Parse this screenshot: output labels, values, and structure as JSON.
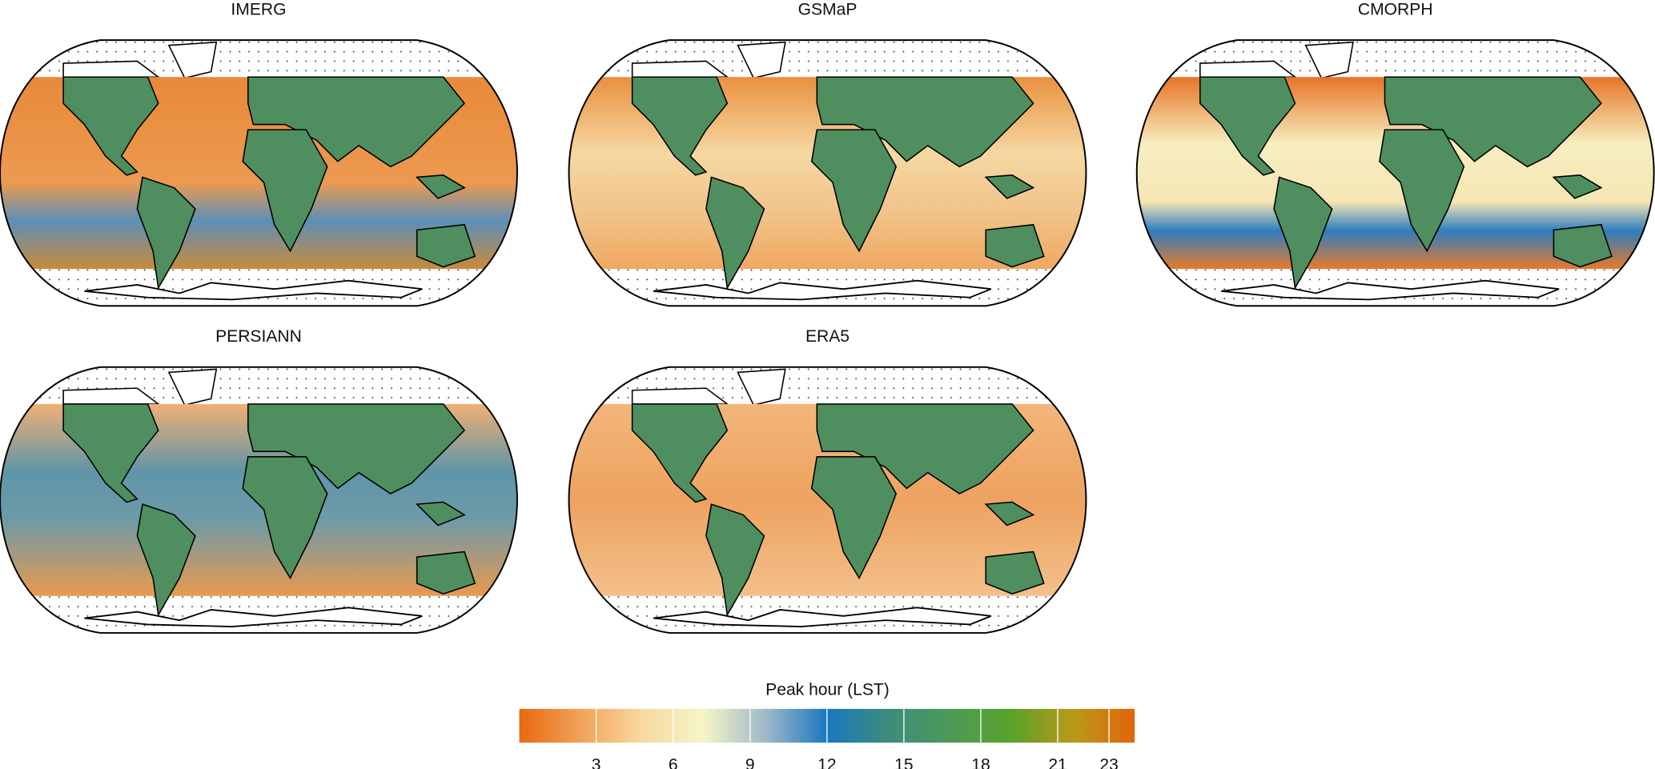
{
  "panels": [
    {
      "title": "IMERG"
    },
    {
      "title": "GSMaP"
    },
    {
      "title": "CMORPH"
    },
    {
      "title": "PERSIANN"
    },
    {
      "title": "ERA5"
    }
  ],
  "colorbar": {
    "label": "Peak hour (LST)",
    "lim": [
      0,
      24
    ],
    "ticks": [
      3,
      6,
      9,
      12,
      15,
      18,
      21,
      23
    ],
    "colors": [
      "#e8690f",
      "#f2a25a",
      "#f8d9a0",
      "#f5f5c8",
      "#9fb9c8",
      "#1a78c0",
      "#3d8c7a",
      "#4d9a58",
      "#5aa22a",
      "#b89a18",
      "#e2650a"
    ]
  }
}
